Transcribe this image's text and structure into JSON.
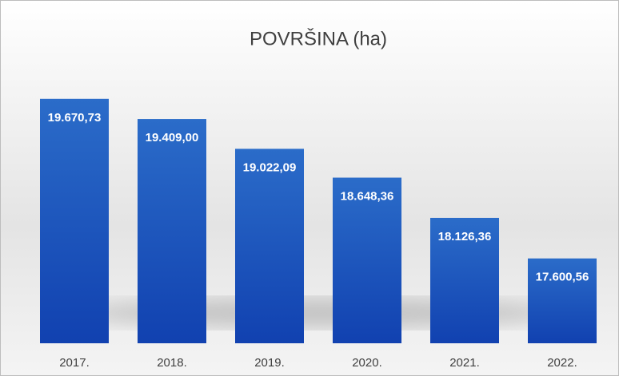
{
  "chart_data": {
    "type": "bar",
    "title": "POVRŠINA (ha)",
    "categories": [
      "2017.",
      "2018.",
      "2019.",
      "2020.",
      "2021.",
      "2022."
    ],
    "values": [
      19670.73,
      19409.0,
      19022.09,
      18648.36,
      18126.36,
      17600.56
    ],
    "value_labels": [
      "19.670,73",
      "19.409,00",
      "19.022,09",
      "18.648,36",
      "18.126,36",
      "17.600,56"
    ],
    "color": "#1f5bc4",
    "ylim": [
      16500,
      20000
    ]
  }
}
